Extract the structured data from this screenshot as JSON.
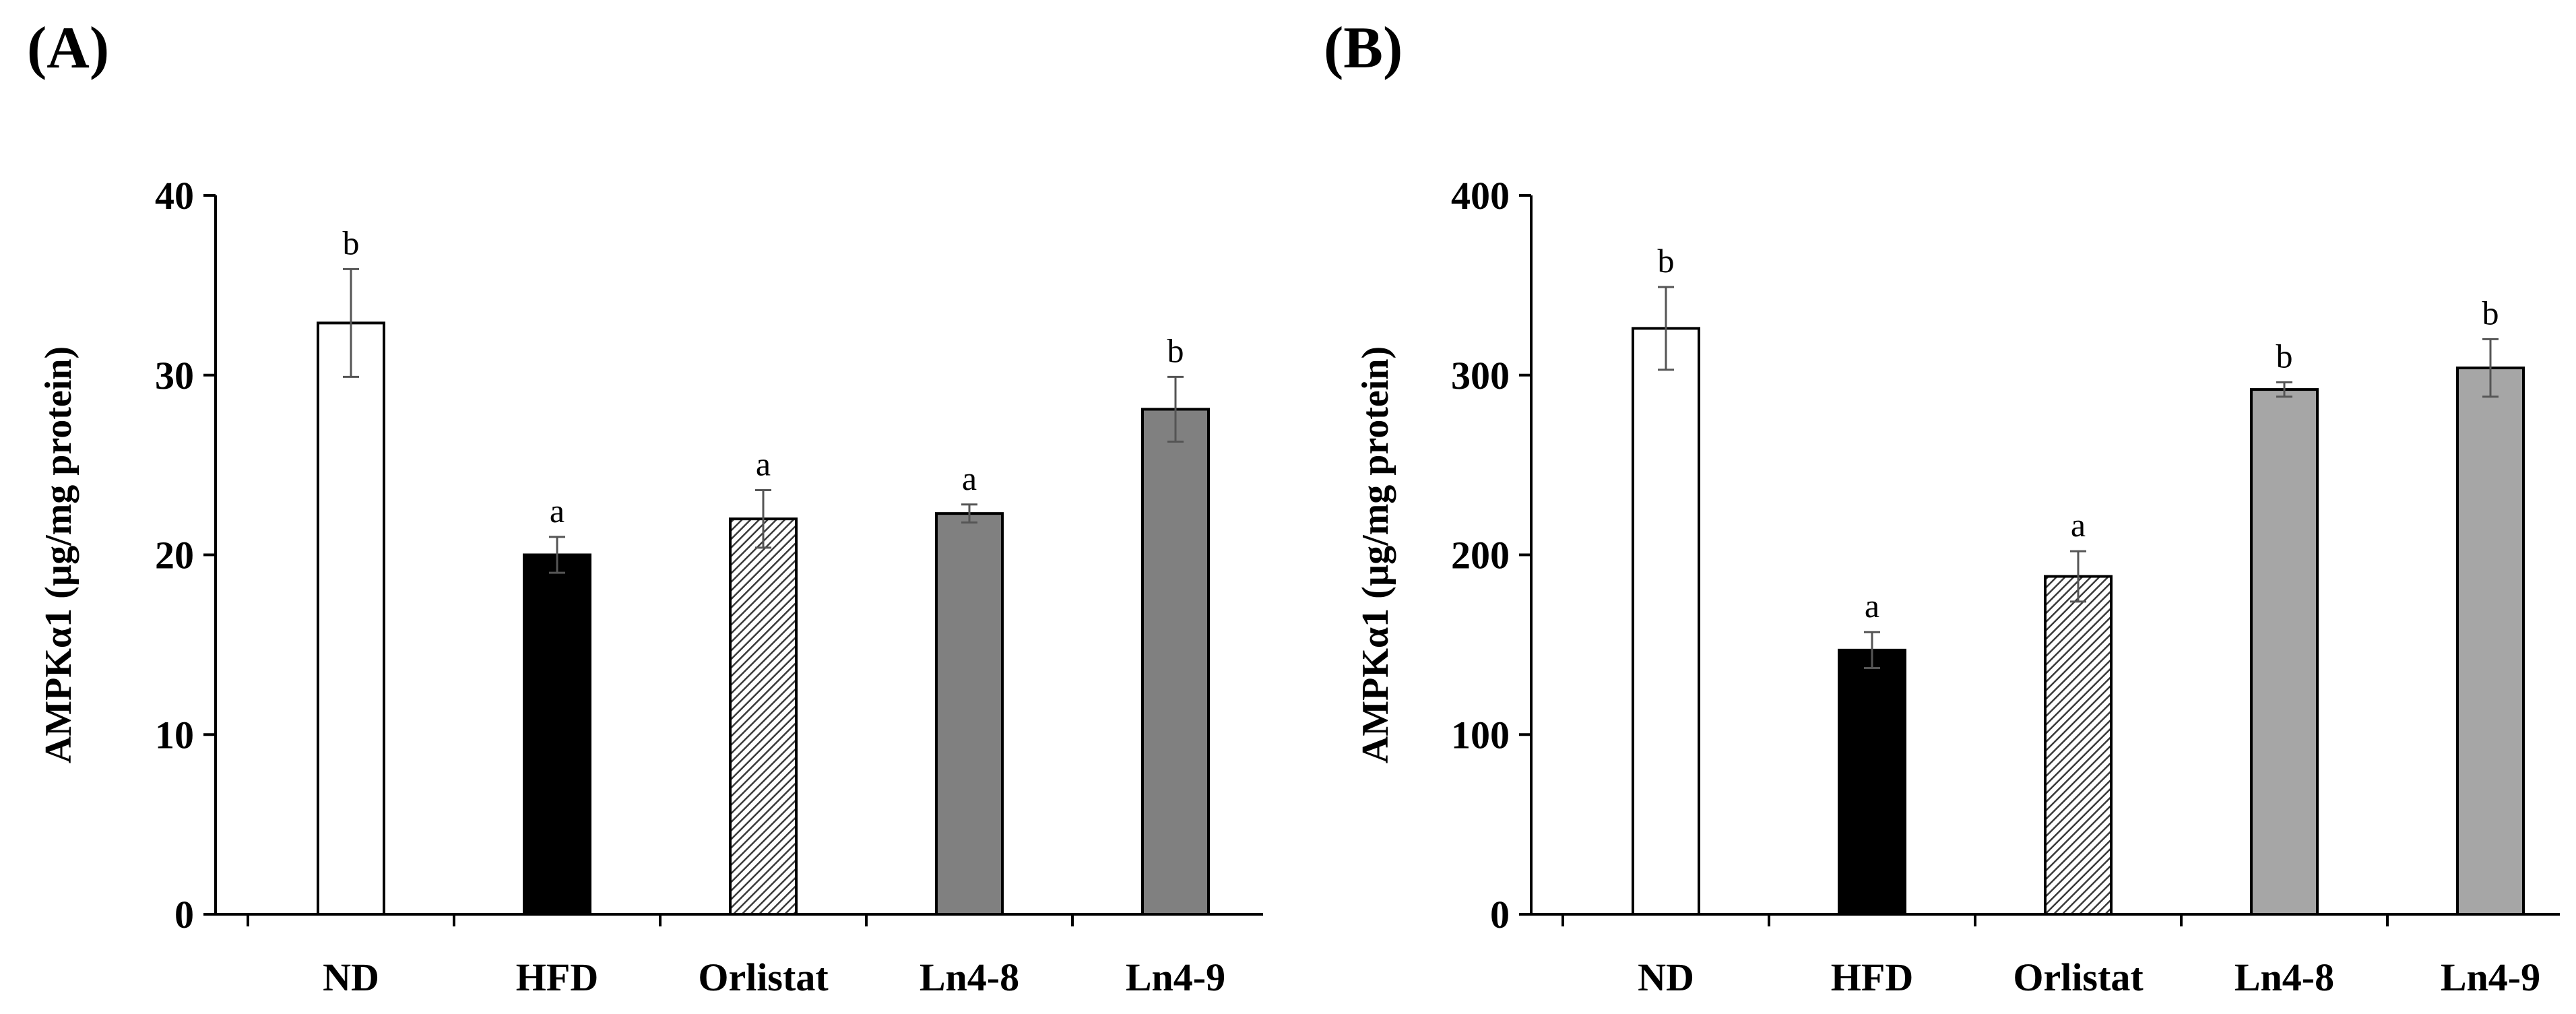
{
  "figure": {
    "panels": [
      "(A)",
      "(B)"
    ]
  },
  "colors": {
    "ND": "#ffffff",
    "HFD": "#000000",
    "Orlistat": "hatched",
    "Ln4-8 (A)": "#808080",
    "Ln4-9 (A)": "#808080",
    "Ln4-8 (B)": "#a6a6a6",
    "Ln4-9 (B)": "#a6a6a6",
    "axis": "#000000",
    "error_bar": "#555555"
  },
  "chart_data": [
    {
      "type": "bar",
      "panel": "(A)",
      "title": "",
      "xlabel": "",
      "ylabel": "AMPKα1 (µg/mg protein)",
      "ylim": [
        0,
        40
      ],
      "yticks": [
        "0",
        "10",
        "20",
        "30",
        "40"
      ],
      "categories": [
        "ND",
        "HFD",
        "Orlistat",
        "Ln4-8",
        "Ln4-9"
      ],
      "values": [
        32.9,
        20.0,
        22.0,
        22.3,
        28.1
      ],
      "errors": [
        3.0,
        1.0,
        1.6,
        0.5,
        1.8
      ],
      "significance": [
        "b",
        "a",
        "a",
        "a",
        "b"
      ],
      "fills": [
        "white",
        "black",
        "hatch",
        "#808080",
        "#808080"
      ]
    },
    {
      "type": "bar",
      "panel": "(B)",
      "title": "",
      "xlabel": "",
      "ylabel": "AMPKα1 (µg/mg protein)",
      "ylim": [
        0,
        400
      ],
      "yticks": [
        "0",
        "100",
        "200",
        "300",
        "400"
      ],
      "categories": [
        "ND",
        "HFD",
        "Orlistat",
        "Ln4-8",
        "Ln4-9"
      ],
      "values": [
        326,
        147,
        188,
        292,
        304
      ],
      "errors": [
        23,
        10,
        14,
        4,
        16
      ],
      "significance": [
        "b",
        "a",
        "a",
        "b",
        "b"
      ],
      "fills": [
        "white",
        "black",
        "hatch",
        "#a6a6a6",
        "#a6a6a6"
      ]
    }
  ]
}
